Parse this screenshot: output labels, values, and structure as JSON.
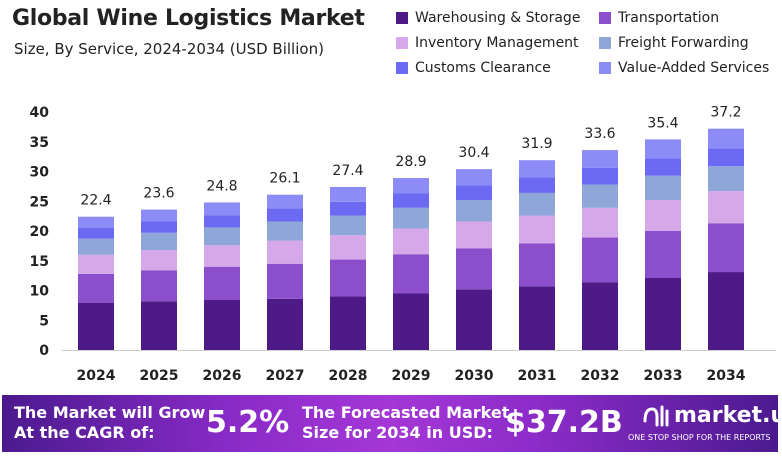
{
  "chart_data": {
    "type": "bar",
    "stacked": true,
    "title": "Global Wine Logistics Market",
    "subtitle": "Size, By Service, 2024-2034 (USD Billion)",
    "xlabel": "",
    "ylabel": "",
    "ylim": [
      0,
      40
    ],
    "yticks": [
      0,
      5,
      10,
      15,
      20,
      25,
      30,
      35,
      40
    ],
    "grid": false,
    "legend_position": "top-right",
    "categories": [
      "2024",
      "2025",
      "2026",
      "2027",
      "2028",
      "2029",
      "2030",
      "2031",
      "2032",
      "2033",
      "2034"
    ],
    "totals": [
      22.4,
      23.6,
      24.8,
      26.1,
      27.4,
      28.9,
      30.4,
      31.9,
      33.6,
      35.4,
      37.2
    ],
    "series": [
      {
        "name": "Warehousing & Storage",
        "color": "#4e1a87",
        "values": [
          7.9,
          8.2,
          8.4,
          8.6,
          9.0,
          9.5,
          10.2,
          10.7,
          11.4,
          12.1,
          13.1
        ]
      },
      {
        "name": "Transportation",
        "color": "#8b4fcc",
        "values": [
          4.9,
          5.2,
          5.6,
          5.9,
          6.2,
          6.6,
          6.9,
          7.2,
          7.5,
          7.9,
          8.2
        ]
      },
      {
        "name": "Inventory Management",
        "color": "#d5a8ea",
        "values": [
          3.2,
          3.4,
          3.6,
          3.9,
          4.1,
          4.3,
          4.5,
          4.7,
          5.0,
          5.2,
          5.4
        ]
      },
      {
        "name": "Freight Forwarding",
        "color": "#8fa6d9",
        "values": [
          2.7,
          2.9,
          3.0,
          3.2,
          3.3,
          3.5,
          3.6,
          3.8,
          3.9,
          4.1,
          4.2
        ]
      },
      {
        "name": "Customs Clearance",
        "color": "#6c69f3",
        "values": [
          1.8,
          1.9,
          2.0,
          2.2,
          2.3,
          2.4,
          2.5,
          2.6,
          2.8,
          2.9,
          3.0
        ]
      },
      {
        "name": "Value-Added Services",
        "color": "#8d8cf6",
        "values": [
          1.9,
          2.0,
          2.2,
          2.3,
          2.5,
          2.6,
          2.7,
          2.9,
          3.0,
          3.2,
          3.3
        ]
      }
    ]
  },
  "footer": {
    "cagr_label_line1": "The Market will Grow",
    "cagr_label_line2": "At the CAGR of:",
    "cagr_value": "5.2%",
    "forecast_label_line1": "The Forecasted Market",
    "forecast_label_line2": "Size for 2034 in USD:",
    "forecast_value": "$37.2B",
    "logo_text": "market.us",
    "logo_tagline": "ONE STOP SHOP FOR THE REPORTS"
  }
}
